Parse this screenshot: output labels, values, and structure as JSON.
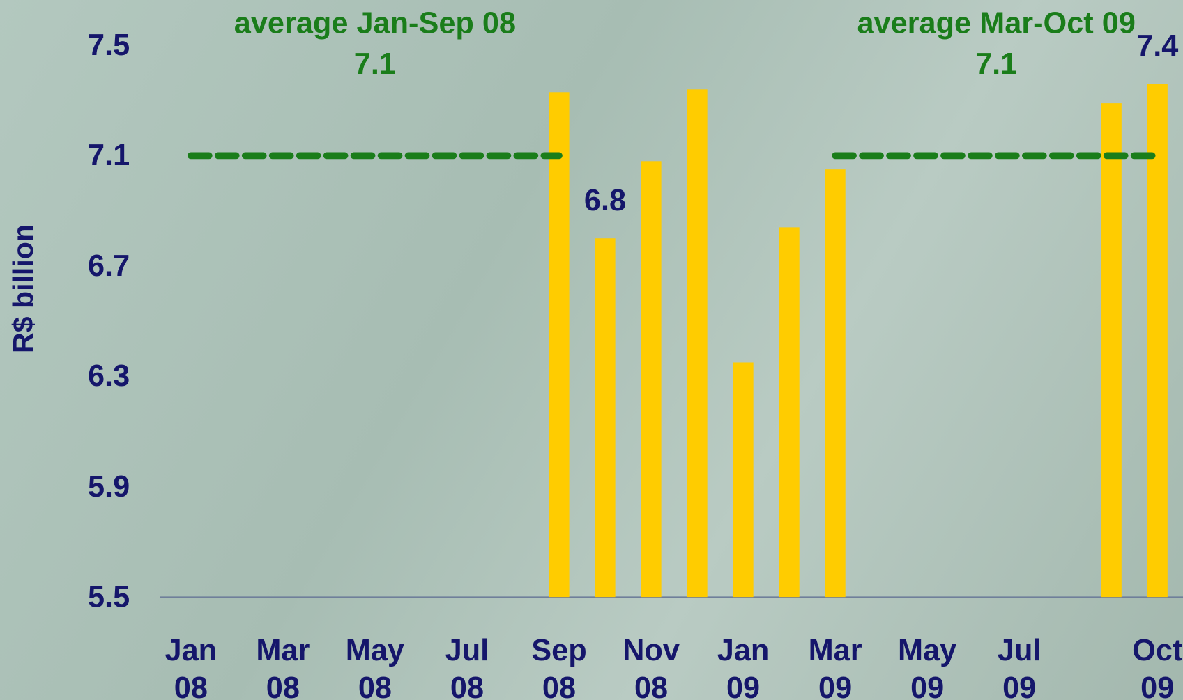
{
  "chart_data": {
    "type": "bar",
    "y_label": "R$ billion",
    "categories": [
      "Jan 08",
      null,
      "Mar 08",
      null,
      "May 08",
      null,
      "Jul 08",
      null,
      "Sep 08",
      null,
      "Nov 08",
      null,
      "Jan 09",
      null,
      "Mar 09",
      null,
      "May 09",
      null,
      "Jul 09",
      null,
      null,
      "Oct 09"
    ],
    "values": [
      null,
      null,
      null,
      null,
      null,
      null,
      null,
      null,
      7.33,
      6.8,
      7.08,
      7.34,
      6.35,
      6.84,
      7.05,
      null,
      null,
      null,
      null,
      null,
      7.29,
      7.36
    ],
    "value_labels": [
      null,
      null,
      null,
      null,
      null,
      null,
      null,
      null,
      null,
      "6.8",
      null,
      null,
      null,
      null,
      null,
      null,
      null,
      null,
      null,
      null,
      null,
      "7.4"
    ],
    "color": "#ffcc00",
    "ylim": [
      5.5,
      7.5
    ],
    "yticks": [
      5.5,
      5.9,
      6.3,
      6.7,
      7.1,
      7.5
    ],
    "averages": [
      {
        "label": "average Jan-Sep 08",
        "value": 7.1,
        "from": "Jan 08",
        "to": "Sep 08",
        "color": "#1a7d1a"
      },
      {
        "label": "average Mar-Oct 09",
        "value": 7.1,
        "from": "Mar 09",
        "to": "Oct 09",
        "color": "#1a7d1a"
      }
    ]
  }
}
